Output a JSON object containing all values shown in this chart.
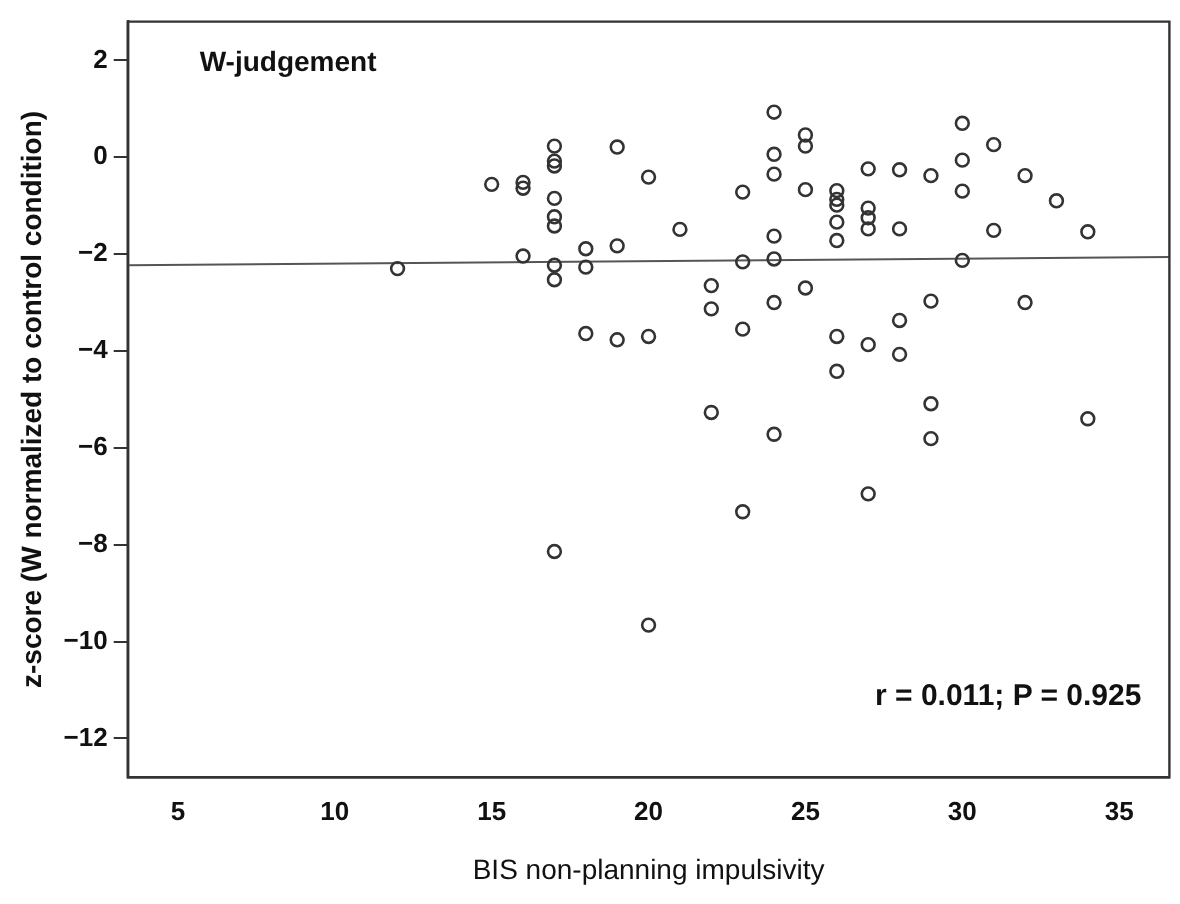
{
  "chart_data": {
    "type": "scatter",
    "title": "W-judgement",
    "xlabel": "BIS non-planning impulsivity",
    "ylabel": "z-score (W normalized to control condition)",
    "annotations": [
      "r = 0.011; P = 0.925"
    ],
    "xlim": [
      3.4,
      36.6
    ],
    "ylim": [
      -12.8,
      2.8
    ],
    "xticks": [
      5,
      10,
      15,
      20,
      25,
      30,
      35
    ],
    "yticks": [
      2,
      0,
      {
        "value": -2,
        "label": "−2"
      },
      {
        "value": -4,
        "label": "−4"
      },
      {
        "value": -6,
        "label": "−6"
      },
      {
        "value": -8,
        "label": "−8"
      },
      {
        "value": -10,
        "label": "−10"
      },
      {
        "value": -12,
        "label": "−12"
      }
    ],
    "grid": false,
    "legend": false,
    "series": [
      {
        "marker": "circle",
        "color": "#333333",
        "x": [
          12,
          15,
          16,
          16,
          16,
          17,
          17,
          17,
          17,
          17,
          17,
          17,
          17,
          17,
          18,
          18,
          18,
          19,
          19,
          19,
          20,
          20,
          20,
          21,
          22,
          22,
          22,
          23,
          23,
          23,
          23,
          24,
          24,
          24,
          24,
          24,
          24,
          24,
          25,
          25,
          25,
          25,
          26,
          26,
          26,
          26,
          26,
          26,
          26,
          27,
          27,
          27,
          27,
          27,
          27,
          28,
          28,
          28,
          28,
          29,
          29,
          29,
          29,
          30,
          30,
          30,
          30,
          31,
          31,
          32,
          32,
          33,
          34,
          34
        ],
        "values": [
          -2.3,
          -0.56,
          -0.52,
          -0.64,
          -2.04,
          0.23,
          -0.08,
          -0.18,
          -0.85,
          -1.23,
          -1.42,
          -2.23,
          -2.53,
          -8.14,
          -1.89,
          -2.27,
          -3.64,
          0.21,
          -1.83,
          -3.77,
          -0.41,
          -3.7,
          -9.66,
          -1.49,
          -2.65,
          -3.13,
          -5.27,
          -0.72,
          -2.16,
          -3.55,
          -7.32,
          0.93,
          0.06,
          -0.35,
          -1.63,
          -2.1,
          -3.0,
          -5.72,
          0.46,
          0.23,
          -0.67,
          -2.7,
          -0.69,
          -0.87,
          -0.99,
          -1.34,
          -1.72,
          -3.7,
          -4.42,
          -0.24,
          -1.05,
          -1.25,
          -1.48,
          -3.87,
          -6.95,
          -0.26,
          -1.48,
          -3.37,
          -4.07,
          -0.38,
          -2.97,
          -5.09,
          -5.81,
          0.7,
          -0.06,
          -0.7,
          -2.13,
          0.26,
          -1.51,
          -0.38,
          -3.0,
          -0.9,
          -1.54,
          -5.4
        ]
      },
      {
        "type": "line",
        "marker": "none",
        "color": "#555555",
        "x": [
          3.4,
          36.6
        ],
        "values": [
          -2.23,
          -2.06
        ]
      }
    ]
  }
}
